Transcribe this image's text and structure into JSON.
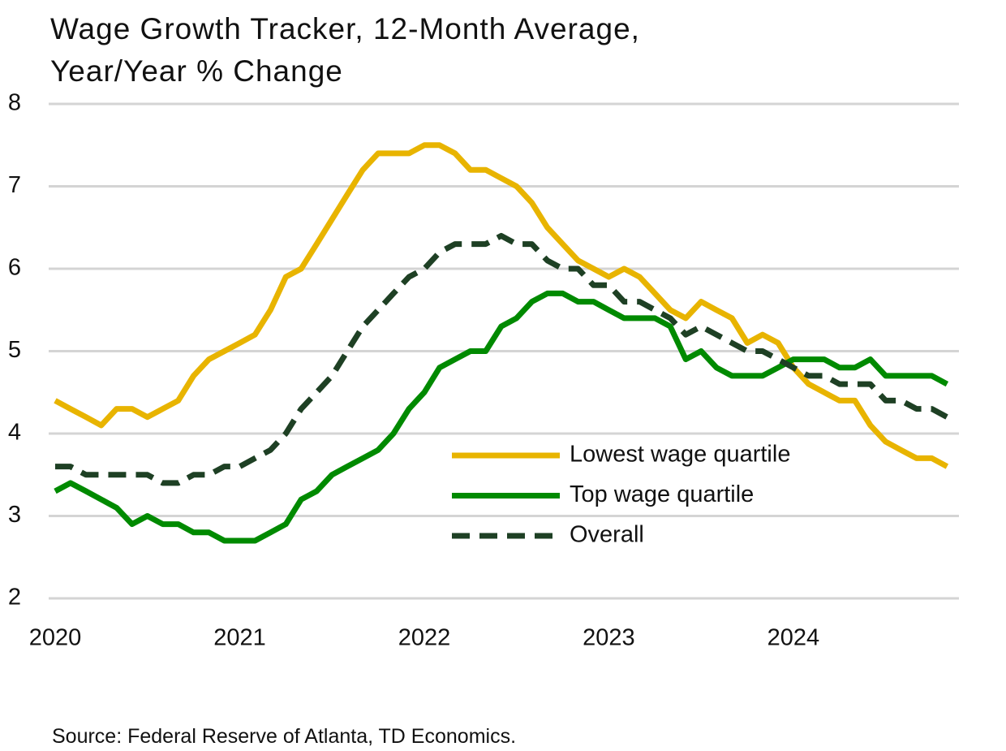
{
  "chart_data": {
    "type": "line",
    "title": "Wage Growth Tracker, 12-Month Average, Year/Year % Change",
    "source": "Source: Federal Reserve of Atlanta, TD Economics.",
    "x": [
      2020,
      2020.083,
      2020.167,
      2020.25,
      2020.333,
      2020.417,
      2020.5,
      2020.583,
      2020.667,
      2020.75,
      2020.833,
      2020.917,
      2021,
      2021.083,
      2021.167,
      2021.25,
      2021.333,
      2021.417,
      2021.5,
      2021.583,
      2021.667,
      2021.75,
      2021.833,
      2021.917,
      2022,
      2022.083,
      2022.167,
      2022.25,
      2022.333,
      2022.417,
      2022.5,
      2022.583,
      2022.667,
      2022.75,
      2022.833,
      2022.917,
      2023,
      2023.083,
      2023.167,
      2023.25,
      2023.333,
      2023.417,
      2023.5,
      2023.583,
      2023.667,
      2023.75,
      2023.833,
      2023.917,
      2024,
      2024.083,
      2024.167,
      2024.25,
      2024.333,
      2024.417,
      2024.5,
      2024.583,
      2024.667,
      2024.75,
      2024.833
    ],
    "series": [
      {
        "name": "Lowest wage quartile",
        "color": "#e8b400",
        "dashed": false,
        "values": [
          4.4,
          4.3,
          4.2,
          4.1,
          4.3,
          4.3,
          4.2,
          4.3,
          4.4,
          4.7,
          4.9,
          5.0,
          5.1,
          5.2,
          5.5,
          5.9,
          6.0,
          6.3,
          6.6,
          6.9,
          7.2,
          7.4,
          7.4,
          7.4,
          7.5,
          7.5,
          7.4,
          7.2,
          7.2,
          7.1,
          7.0,
          6.8,
          6.5,
          6.3,
          6.1,
          6.0,
          5.9,
          6.0,
          5.9,
          5.7,
          5.5,
          5.4,
          5.6,
          5.5,
          5.4,
          5.1,
          5.2,
          5.1,
          4.8,
          4.6,
          4.5,
          4.4,
          4.4,
          4.1,
          3.9,
          3.8,
          3.7,
          3.7,
          3.6
        ]
      },
      {
        "name": "Top wage quartile",
        "color": "#008a00",
        "dashed": false,
        "values": [
          3.3,
          3.4,
          3.3,
          3.2,
          3.1,
          2.9,
          3.0,
          2.9,
          2.9,
          2.8,
          2.8,
          2.7,
          2.7,
          2.7,
          2.8,
          2.9,
          3.2,
          3.3,
          3.5,
          3.6,
          3.7,
          3.8,
          4.0,
          4.3,
          4.5,
          4.8,
          4.9,
          5.0,
          5.0,
          5.3,
          5.4,
          5.6,
          5.7,
          5.7,
          5.6,
          5.6,
          5.5,
          5.4,
          5.4,
          5.4,
          5.3,
          4.9,
          5.0,
          4.8,
          4.7,
          4.7,
          4.7,
          4.8,
          4.9,
          4.9,
          4.9,
          4.8,
          4.8,
          4.9,
          4.7,
          4.7,
          4.7,
          4.7,
          4.6
        ]
      },
      {
        "name": "Overall",
        "color": "#1e4024",
        "dashed": true,
        "values": [
          3.6,
          3.6,
          3.5,
          3.5,
          3.5,
          3.5,
          3.5,
          3.4,
          3.4,
          3.5,
          3.5,
          3.6,
          3.6,
          3.7,
          3.8,
          4.0,
          4.3,
          4.5,
          4.7,
          5.0,
          5.3,
          5.5,
          5.7,
          5.9,
          6.0,
          6.2,
          6.3,
          6.3,
          6.3,
          6.4,
          6.3,
          6.3,
          6.1,
          6.0,
          6.0,
          5.8,
          5.8,
          5.6,
          5.6,
          5.5,
          5.4,
          5.2,
          5.3,
          5.2,
          5.1,
          5.0,
          5.0,
          4.9,
          4.8,
          4.7,
          4.7,
          4.6,
          4.6,
          4.6,
          4.4,
          4.4,
          4.3,
          4.3,
          4.2
        ]
      }
    ],
    "xlim": [
      2019.965,
      2024.897
    ],
    "xticks": [
      2020,
      2021,
      2022,
      2023,
      2024
    ],
    "ylim": [
      2,
      8
    ],
    "yticks": [
      2,
      3,
      4,
      5,
      6,
      7,
      8
    ],
    "grid": true
  }
}
